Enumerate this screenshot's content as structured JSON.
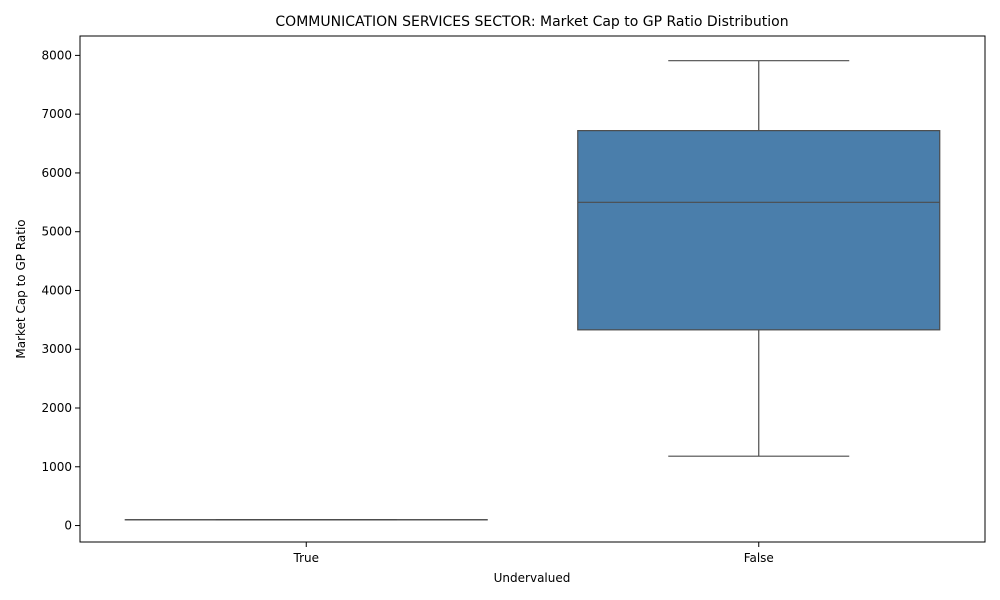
{
  "chart_data": {
    "type": "box",
    "title": "COMMUNICATION SERVICES SECTOR: Market Cap to GP Ratio Distribution",
    "xlabel": "Undervalued",
    "ylabel": "Market Cap to GP Ratio",
    "categories": [
      "True",
      "False"
    ],
    "boxes": [
      {
        "category": "True",
        "whislo": 98,
        "q1": 98,
        "median": 98,
        "q3": 98,
        "whishi": 98
      },
      {
        "category": "False",
        "whislo": 1180,
        "q1": 3330,
        "median": 5500,
        "q3": 6720,
        "whishi": 7910
      }
    ],
    "yticks": [
      0,
      1000,
      2000,
      3000,
      4000,
      5000,
      6000,
      7000,
      8000
    ],
    "ylim": [
      -280,
      8330
    ],
    "grid": false,
    "colors": {
      "box_fill": "#4a7eab",
      "line": "#4c4c4c"
    }
  }
}
